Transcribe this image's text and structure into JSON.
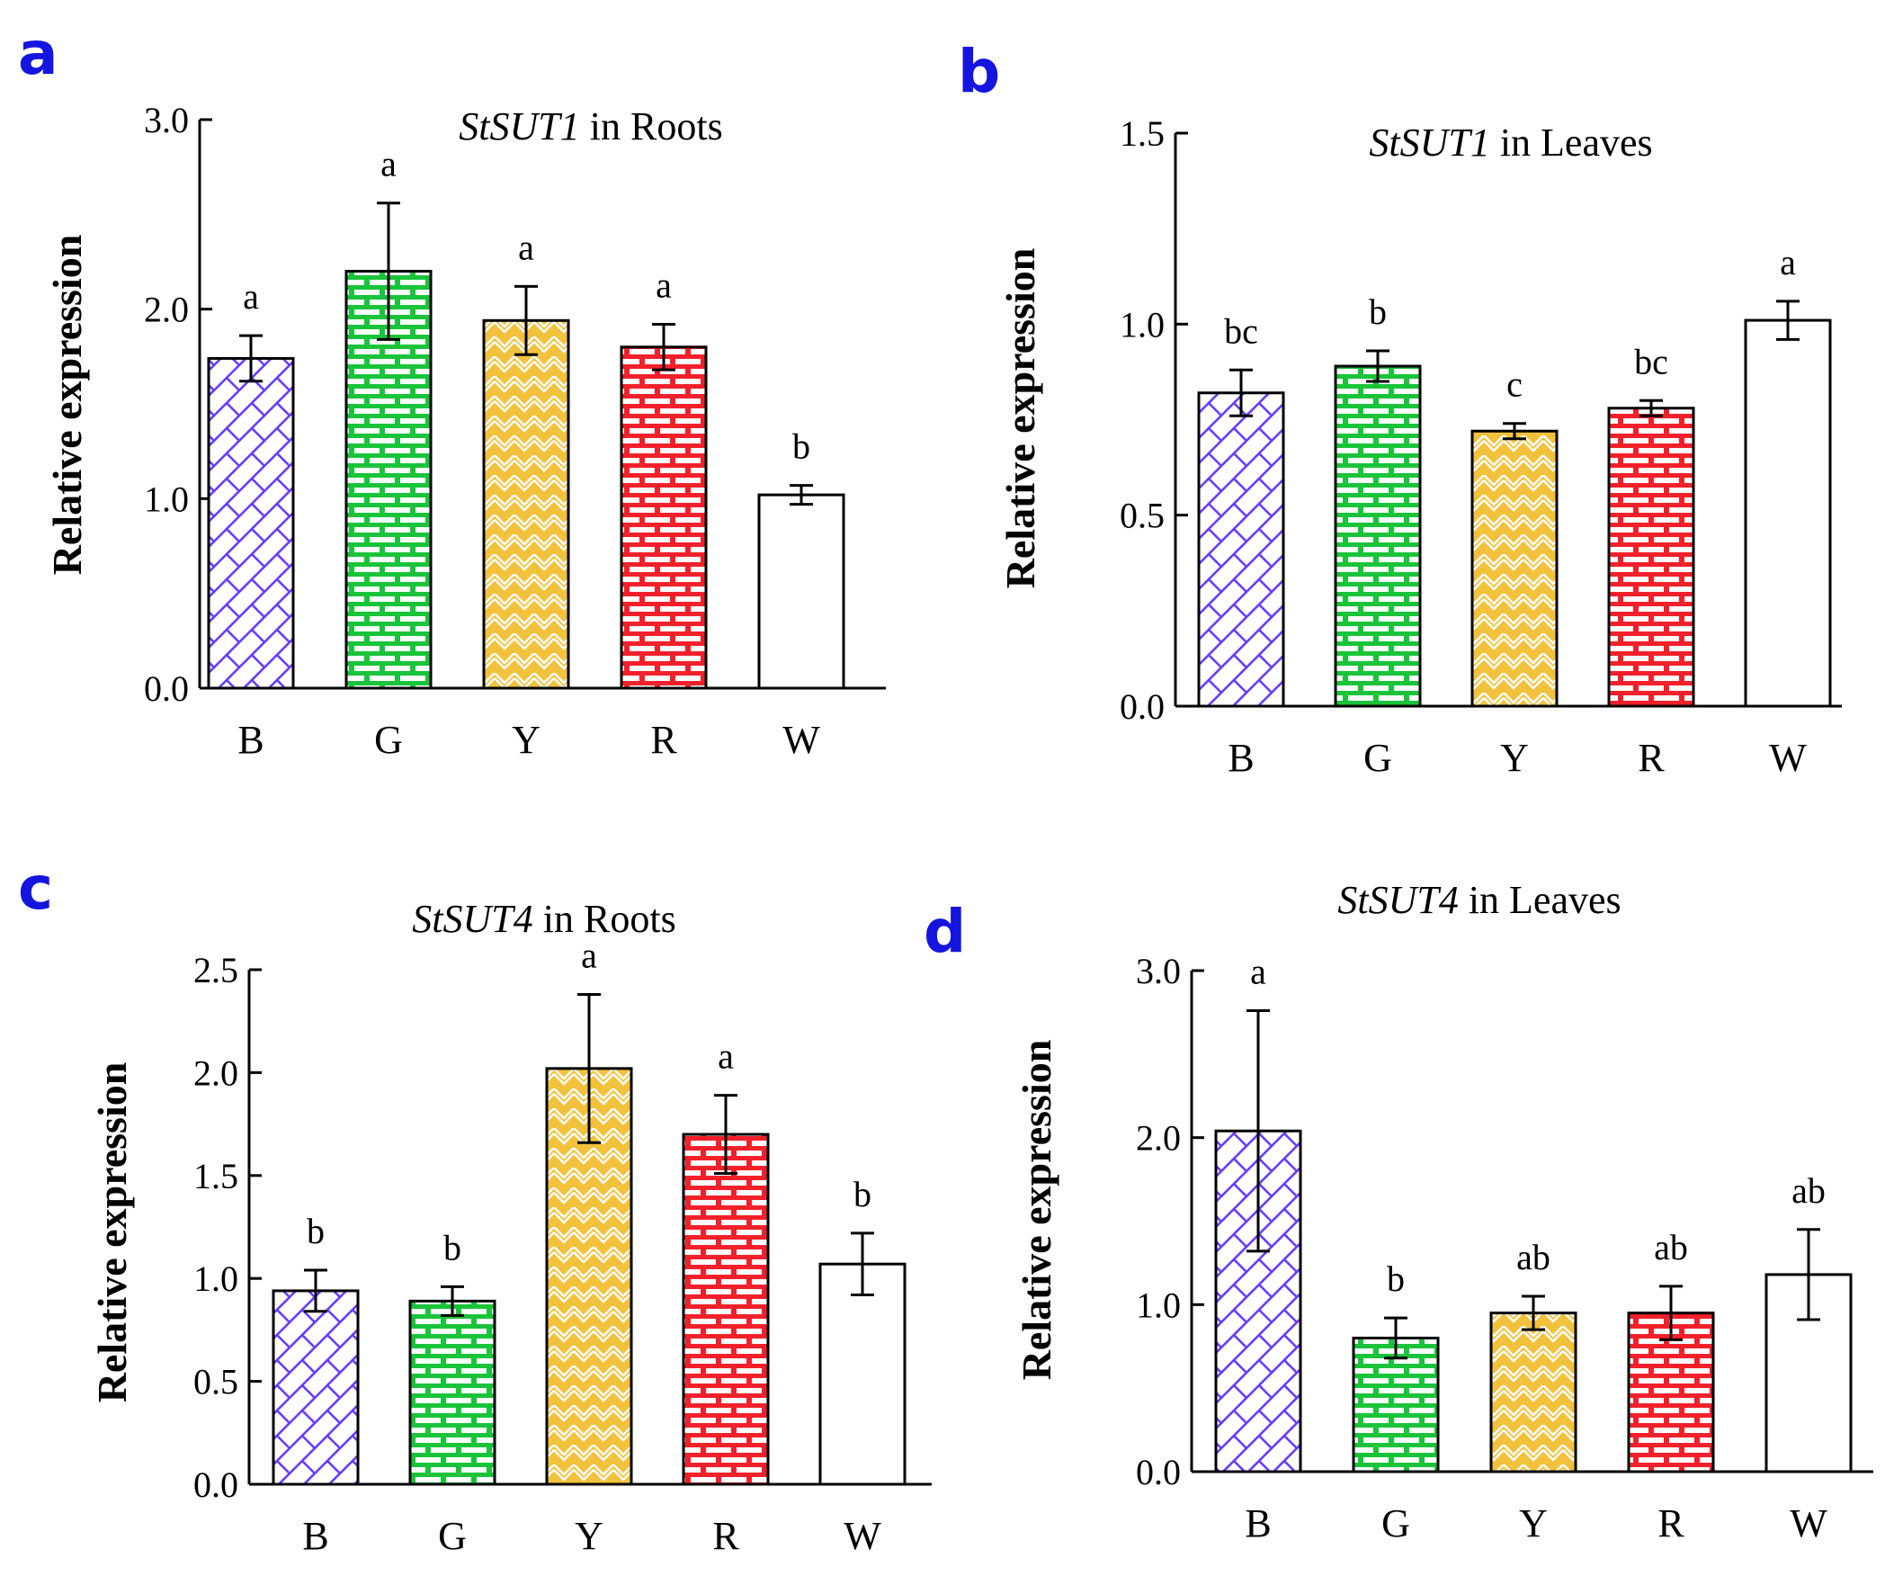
{
  "colors": {
    "B": "#6a3cff",
    "G": "#19c43a",
    "Y": "#f3c23c",
    "R": "#f2202a",
    "W": "#ffffff",
    "panel_letter": "#1515e0"
  },
  "chart_data": [
    {
      "type": "bar",
      "panel": "a",
      "title_gene": "StSUT1",
      "title_rest": " in Roots",
      "ylabel": "Relative expression",
      "ylim": [
        0,
        3.0
      ],
      "yticks": [
        "0.0",
        "1.0",
        "2.0",
        "3.0"
      ],
      "ytick_values": [
        0,
        1,
        2,
        3
      ],
      "categories": [
        "B",
        "G",
        "Y",
        "R",
        "W"
      ],
      "values": [
        1.74,
        2.2,
        1.94,
        1.8,
        1.02
      ],
      "errors": [
        0.12,
        0.36,
        0.18,
        0.12,
        0.05
      ],
      "significance": [
        "a",
        "a",
        "a",
        "a",
        "b"
      ]
    },
    {
      "type": "bar",
      "panel": "b",
      "title_gene": "StSUT1",
      "title_rest": " in Leaves",
      "ylabel": "Relative expression",
      "ylim": [
        0,
        1.5
      ],
      "yticks": [
        "0.0",
        "0.5",
        "1.0",
        "1.5"
      ],
      "ytick_values": [
        0,
        0.5,
        1.0,
        1.5
      ],
      "categories": [
        "B",
        "G",
        "Y",
        "R",
        "W"
      ],
      "values": [
        0.82,
        0.89,
        0.72,
        0.78,
        1.01
      ],
      "errors": [
        0.06,
        0.04,
        0.02,
        0.02,
        0.05
      ],
      "significance": [
        "bc",
        "b",
        "c",
        "bc",
        "a"
      ]
    },
    {
      "type": "bar",
      "panel": "c",
      "title_gene": "StSUT4",
      "title_rest": " in Roots",
      "ylabel": "Relative expression",
      "ylim": [
        0,
        2.5
      ],
      "yticks": [
        "0.0",
        "0.5",
        "1.0",
        "1.5",
        "2.0",
        "2.5"
      ],
      "ytick_values": [
        0,
        0.5,
        1.0,
        1.5,
        2.0,
        2.5
      ],
      "categories": [
        "B",
        "G",
        "Y",
        "R",
        "W"
      ],
      "values": [
        0.94,
        0.89,
        2.02,
        1.7,
        1.07
      ],
      "errors": [
        0.1,
        0.07,
        0.36,
        0.19,
        0.15
      ],
      "significance": [
        "b",
        "b",
        "a",
        "a",
        "b"
      ]
    },
    {
      "type": "bar",
      "panel": "d",
      "title_gene": "StSUT4",
      "title_rest": " in Leaves",
      "ylabel": "Relative expression",
      "ylim": [
        0,
        3.0
      ],
      "yticks": [
        "0.0",
        "1.0",
        "2.0",
        "3.0"
      ],
      "ytick_values": [
        0,
        1,
        2,
        3
      ],
      "categories": [
        "B",
        "G",
        "Y",
        "R",
        "W"
      ],
      "values": [
        2.04,
        0.8,
        0.95,
        0.95,
        1.18
      ],
      "errors": [
        0.72,
        0.12,
        0.1,
        0.16,
        0.27
      ],
      "significance": [
        "a",
        "b",
        "ab",
        "ab",
        "ab"
      ]
    }
  ]
}
